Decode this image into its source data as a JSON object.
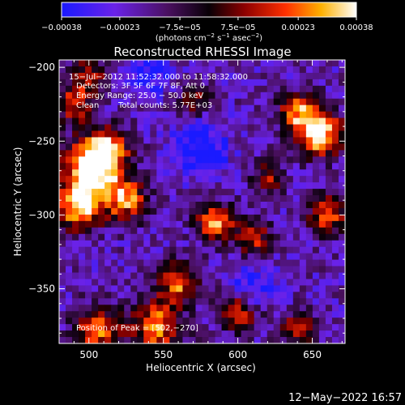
{
  "chart_data": {
    "type": "heatmap",
    "title": "Reconstructed RHESSI Image",
    "xlabel": "Heliocentric X (arcsec)",
    "ylabel": "Heliocentric Y (arcsec)",
    "xlim": [
      480,
      672
    ],
    "ylim": [
      -387,
      -195
    ],
    "x_ticks": [
      500,
      550,
      600,
      650
    ],
    "y_ticks": [
      -350,
      -300,
      -250,
      -200
    ],
    "x_tick_labels": [
      "500",
      "550",
      "600",
      "650"
    ],
    "y_tick_labels": [
      "−350",
      "−300",
      "−250",
      "−200"
    ],
    "colorbar": {
      "range": [
        -0.00038,
        0.00038
      ],
      "ticks": [
        -0.00038,
        -0.00023,
        -7.5e-05,
        7.5e-05,
        0.00023,
        0.00038
      ],
      "tick_labels": [
        "−0.00038",
        "−0.00023",
        "−7.5e−05",
        "7.5e−05",
        "0.00023",
        "0.00038"
      ],
      "unit_label": {
        "prefix": "(photons cm",
        "exp1": "−2",
        "mid1": " s",
        "exp2": "−1",
        "mid2": " asec",
        "exp3": "−2",
        "suffix": ")"
      },
      "colormap": "blue-purple-red-yellow-white"
    },
    "annotations": {
      "time_range": "15−Jul−2012 11:52:32.000 to 11:58:32.000",
      "detectors": "Detectors: 3F 5F 6F 7F 8F, Att 0",
      "energy_range": "Energy Range: 25.0 − 50.0 keV",
      "clean": "Clean",
      "total_counts": "Total counts: 5.77E+03",
      "peak": "Position of Peak = [502,−270]"
    },
    "image_blobs": [
      {
        "x": 502,
        "y": -270,
        "amp": 1.0,
        "sigma": 14
      },
      {
        "x": 512,
        "y": -255,
        "amp": 0.7,
        "sigma": 10
      },
      {
        "x": 493,
        "y": -295,
        "amp": 0.8,
        "sigma": 11
      },
      {
        "x": 525,
        "y": -290,
        "amp": 0.7,
        "sigma": 10
      },
      {
        "x": 490,
        "y": -225,
        "amp": 0.6,
        "sigma": 9
      },
      {
        "x": 500,
        "y": -205,
        "amp": 0.5,
        "sigma": 8
      },
      {
        "x": 655,
        "y": -245,
        "amp": 0.95,
        "sigma": 11
      },
      {
        "x": 640,
        "y": -230,
        "amp": 0.65,
        "sigma": 9
      },
      {
        "x": 660,
        "y": -300,
        "amp": 0.7,
        "sigma": 9
      },
      {
        "x": 545,
        "y": -375,
        "amp": 0.75,
        "sigma": 12
      },
      {
        "x": 505,
        "y": -378,
        "amp": 0.7,
        "sigma": 11
      },
      {
        "x": 560,
        "y": -345,
        "amp": 0.75,
        "sigma": 9
      },
      {
        "x": 585,
        "y": -305,
        "amp": 0.75,
        "sigma": 9
      },
      {
        "x": 610,
        "y": -315,
        "amp": 0.6,
        "sigma": 8
      },
      {
        "x": 600,
        "y": -365,
        "amp": 0.6,
        "sigma": 10
      },
      {
        "x": 640,
        "y": -378,
        "amp": 0.5,
        "sigma": 9
      },
      {
        "x": 570,
        "y": -222,
        "amp": 0.45,
        "sigma": 8
      },
      {
        "x": 620,
        "y": -275,
        "amp": 0.45,
        "sigma": 8
      },
      {
        "x": 575,
        "y": -255,
        "amp": -0.45,
        "sigma": 12
      },
      {
        "x": 610,
        "y": -350,
        "amp": -0.4,
        "sigma": 10
      },
      {
        "x": 540,
        "y": -205,
        "amp": -0.35,
        "sigma": 10
      }
    ]
  },
  "footer": {
    "timestamp": "12−May−2022 16:57"
  }
}
